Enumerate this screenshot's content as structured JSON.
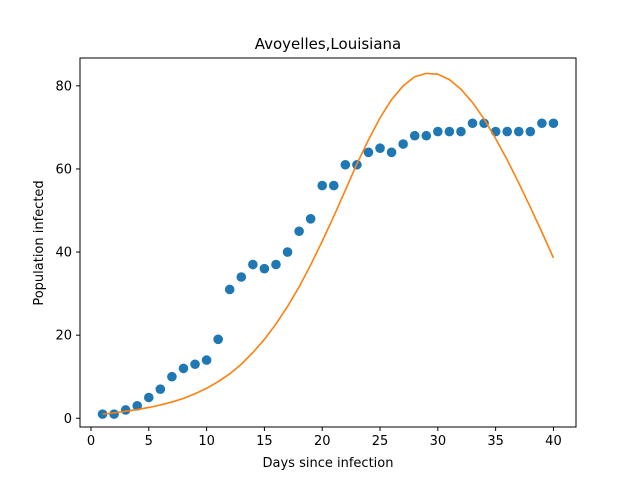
{
  "chart_data": {
    "type": "scatter",
    "title": "Avoyelles,Louisiana",
    "xlabel": "Days since infection",
    "ylabel": "Population infected",
    "xlim": [
      -0.95,
      41.95
    ],
    "ylim": [
      -2.1,
      86.7
    ],
    "xticks": [
      0,
      5,
      10,
      15,
      20,
      25,
      30,
      35,
      40
    ],
    "yticks": [
      0,
      20,
      40,
      60,
      80
    ],
    "grid": false,
    "legend": "none",
    "series": [
      {
        "kind": "scatter",
        "color": "#1f77b4",
        "x": [
          1,
          2,
          3,
          4,
          5,
          6,
          7,
          8,
          9,
          10,
          11,
          12,
          13,
          14,
          15,
          16,
          17,
          18,
          19,
          20,
          21,
          22,
          23,
          24,
          25,
          26,
          27,
          28,
          29,
          30,
          31,
          32,
          33,
          34,
          35,
          36,
          37,
          38,
          39,
          40
        ],
        "y": [
          1,
          1,
          2,
          3,
          5,
          7,
          10,
          12,
          13,
          14,
          19,
          31,
          34,
          37,
          36,
          37,
          40,
          45,
          48,
          56,
          56,
          61,
          61,
          64,
          65,
          64,
          66,
          68,
          68,
          69,
          69,
          69,
          71,
          71,
          69,
          69,
          69,
          69,
          71,
          71
        ]
      },
      {
        "kind": "line",
        "color": "#ff7f0e",
        "x": [
          1,
          2,
          3,
          4,
          5,
          6,
          7,
          8,
          9,
          10,
          11,
          12,
          13,
          14,
          15,
          16,
          17,
          18,
          19,
          20,
          21,
          22,
          23,
          24,
          25,
          26,
          27,
          28,
          29,
          30,
          31,
          32,
          33,
          34,
          35,
          36,
          37,
          38,
          39,
          40
        ],
        "y": [
          1.0,
          1.3,
          1.7,
          2.1,
          2.6,
          3.2,
          3.9,
          4.8,
          5.9,
          7.2,
          8.8,
          10.7,
          13.0,
          15.8,
          19.0,
          22.7,
          26.9,
          31.6,
          36.9,
          42.6,
          48.6,
          54.9,
          61.2,
          67.0,
          72.3,
          76.7,
          80.0,
          82.2,
          83.0,
          82.8,
          81.5,
          79.2,
          76.0,
          72.0,
          67.3,
          62.2,
          56.6,
          50.8,
          44.8,
          38.6
        ]
      }
    ]
  }
}
